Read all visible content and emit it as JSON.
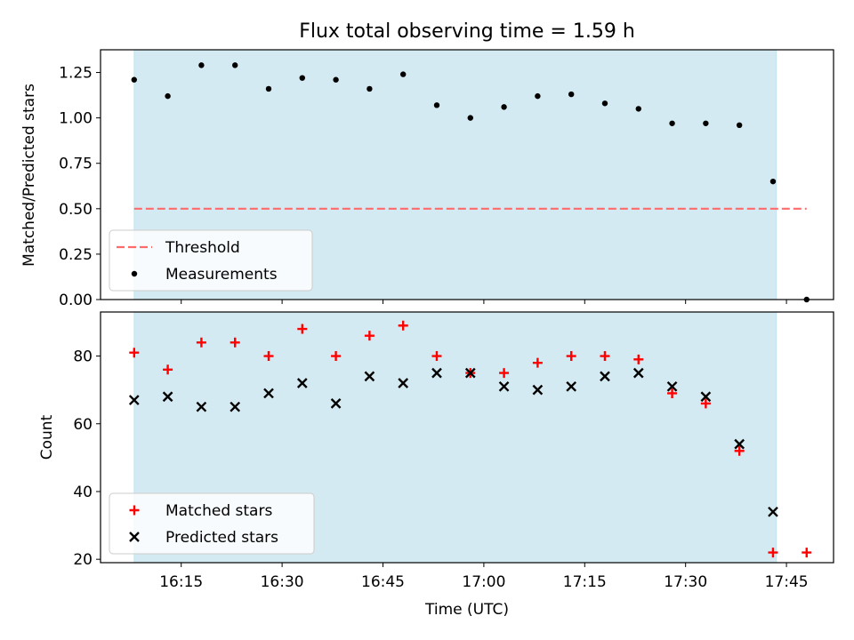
{
  "title": "Flux total observing time = 1.59 h",
  "chart_data": [
    {
      "type": "scatter",
      "ylabel": "Matched/Predicted stars",
      "xlim": [
        "16:03",
        "17:52"
      ],
      "ylim": [
        0,
        1.375
      ],
      "yticks": [
        "0.00",
        "0.25",
        "0.50",
        "0.75",
        "1.00",
        "1.25"
      ],
      "shaded_span": [
        "16:08",
        "17:43:30"
      ],
      "shaded_color": "#add8e6",
      "threshold": {
        "name": "Threshold",
        "value": 0.5,
        "x_range": [
          "16:08",
          "17:48"
        ],
        "color": "#ff6b6b"
      },
      "legend_placement": "lower-left",
      "series": [
        {
          "name": "Measurements",
          "color": "#000000",
          "marker": "dot",
          "x": [
            "16:08",
            "16:13",
            "16:18",
            "16:23",
            "16:28",
            "16:33",
            "16:38",
            "16:43",
            "16:48",
            "16:53",
            "16:58",
            "17:03",
            "17:08",
            "17:13",
            "17:18",
            "17:23",
            "17:28",
            "17:33",
            "17:38",
            "17:43",
            "17:48"
          ],
          "y": [
            1.21,
            1.12,
            1.29,
            1.29,
            1.16,
            1.22,
            1.21,
            1.16,
            1.24,
            1.07,
            1.0,
            1.06,
            1.12,
            1.13,
            1.08,
            1.05,
            0.97,
            0.97,
            0.96,
            0.65,
            0.0
          ]
        }
      ]
    },
    {
      "type": "scatter",
      "xlabel": "Time (UTC)",
      "ylabel": "Count",
      "xlim": [
        "16:03",
        "17:52"
      ],
      "ylim": [
        19,
        93
      ],
      "yticks": [
        "20",
        "40",
        "60",
        "80"
      ],
      "xticks": [
        "16:15",
        "16:30",
        "16:45",
        "17:00",
        "17:15",
        "17:30",
        "17:45"
      ],
      "shaded_span": [
        "16:08",
        "17:43:30"
      ],
      "shaded_color": "#add8e6",
      "legend_placement": "lower-left",
      "series": [
        {
          "name": "Matched stars",
          "color": "#ff0000",
          "marker": "plus",
          "x": [
            "16:08",
            "16:13",
            "16:18",
            "16:23",
            "16:28",
            "16:33",
            "16:38",
            "16:43",
            "16:48",
            "16:53",
            "16:58",
            "17:03",
            "17:08",
            "17:13",
            "17:18",
            "17:23",
            "17:28",
            "17:33",
            "17:38",
            "17:43",
            "17:48"
          ],
          "y": [
            81,
            76,
            84,
            84,
            80,
            88,
            80,
            86,
            89,
            80,
            75,
            75,
            78,
            80,
            80,
            79,
            69,
            66,
            52,
            22,
            22
          ]
        },
        {
          "name": "Predicted stars",
          "color": "#000000",
          "marker": "x",
          "x": [
            "16:08",
            "16:13",
            "16:18",
            "16:23",
            "16:28",
            "16:33",
            "16:38",
            "16:43",
            "16:48",
            "16:53",
            "16:58",
            "17:03",
            "17:08",
            "17:13",
            "17:18",
            "17:23",
            "17:28",
            "17:33",
            "17:38",
            "17:43"
          ],
          "y": [
            67,
            68,
            65,
            65,
            69,
            72,
            66,
            74,
            72,
            75,
            75,
            71,
            70,
            71,
            74,
            75,
            71,
            68,
            54,
            34
          ]
        }
      ]
    }
  ]
}
